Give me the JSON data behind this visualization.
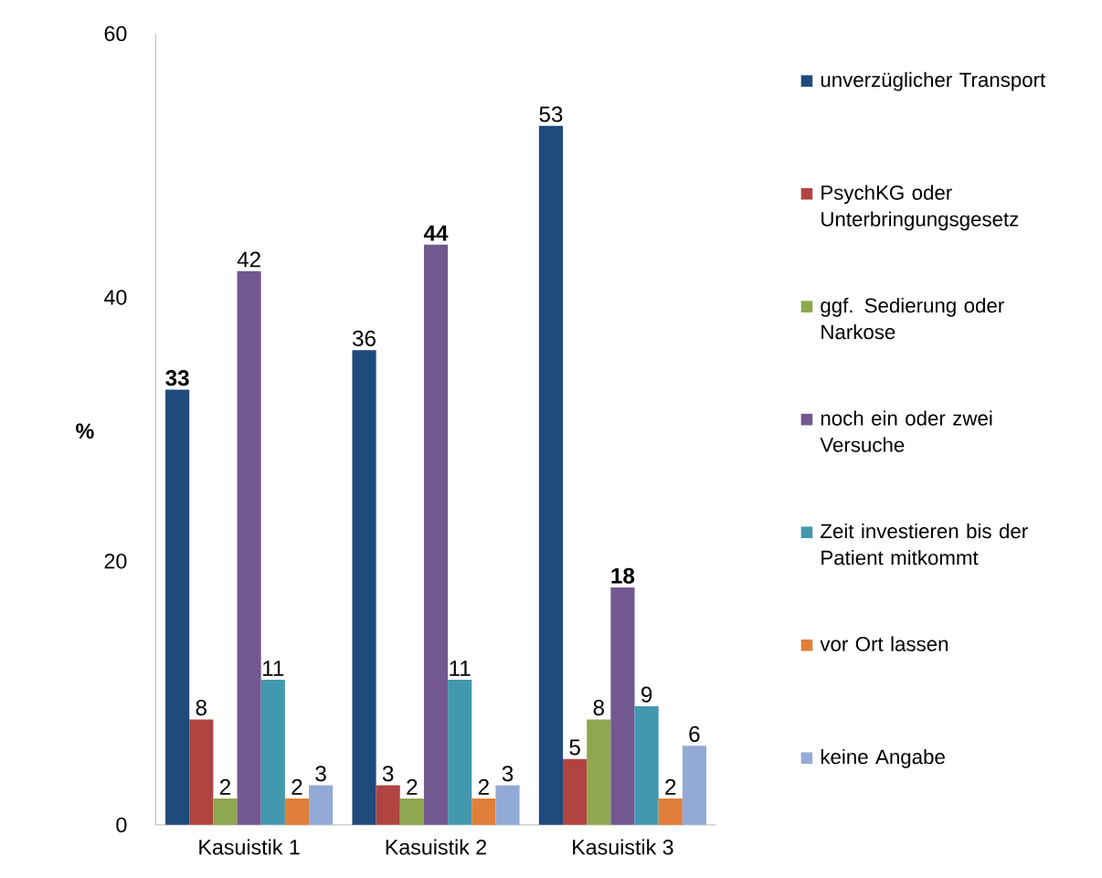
{
  "chart_data": {
    "type": "bar",
    "ylabel": "%",
    "categories": [
      "Kasuistik 1",
      "Kasuistik 2",
      "Kasuistik 3"
    ],
    "ylim": [
      0,
      60
    ],
    "yticks": [
      0,
      20,
      40,
      60
    ],
    "grid": false,
    "legend": "right",
    "series": [
      {
        "name": "unverzüglicher Transport",
        "color": "#1f4a7c",
        "values": [
          33,
          36,
          53
        ],
        "value_labels": [
          "**33**",
          "36",
          "53"
        ]
      },
      {
        "name": "PsychKG oder Unterbringungsgesetz",
        "color": "#b04440",
        "values": [
          8,
          3,
          5
        ],
        "value_labels": [
          "8",
          "3",
          "5"
        ]
      },
      {
        "name": "ggf. Sedierung oder Narkose",
        "color": "#8ea84f",
        "values": [
          2,
          2,
          8
        ],
        "value_labels": [
          "2",
          "2",
          "8"
        ]
      },
      {
        "name": "noch ein oder zwei Versuche",
        "color": "#72588f",
        "values": [
          42,
          44,
          18
        ],
        "value_labels": [
          "42",
          "**44**",
          "**18**"
        ]
      },
      {
        "name": "Zeit investieren bis der Patient mitkommt",
        "color": "#4298ae",
        "values": [
          11,
          11,
          9
        ],
        "value_labels": [
          "11",
          "11",
          "9"
        ]
      },
      {
        "name": "vor Ort lassen",
        "color": "#e07f3a",
        "values": [
          2,
          2,
          2
        ],
        "value_labels": [
          "2",
          "2",
          "2"
        ]
      },
      {
        "name": "keine Angabe",
        "color": "#93aad6",
        "values": [
          3,
          3,
          6
        ],
        "value_labels": [
          "3",
          "3",
          "6"
        ]
      }
    ]
  }
}
